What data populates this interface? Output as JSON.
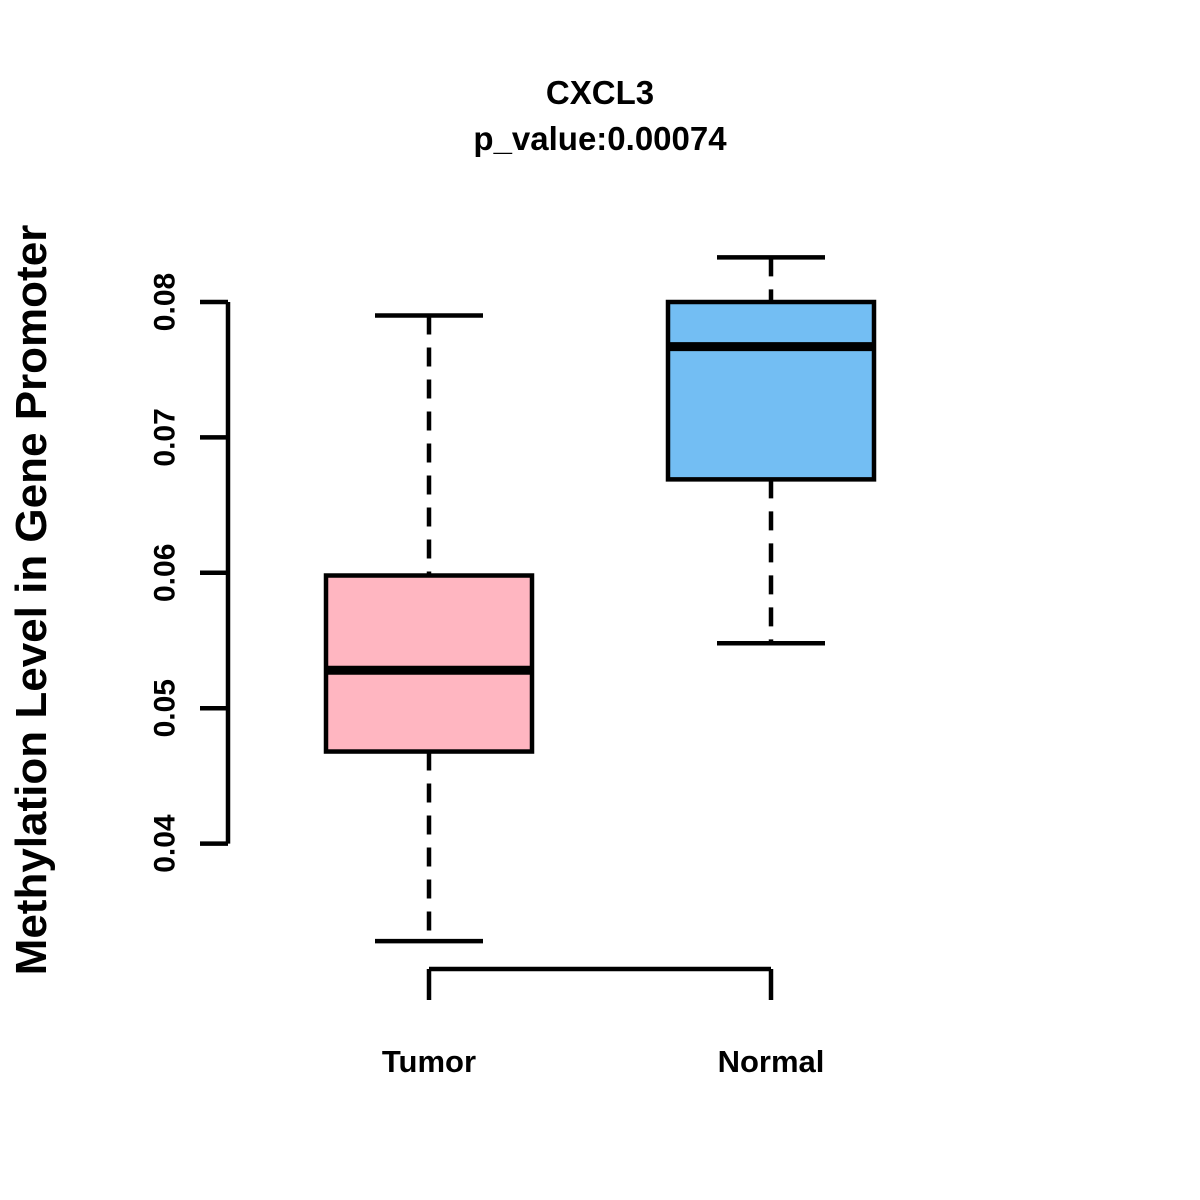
{
  "chart_data": {
    "type": "boxplot",
    "title": "CXCL3",
    "subtitle": "p_value:0.00074",
    "ylabel": "Methylation Level in Gene Promoter",
    "xlabel": "",
    "categories": [
      "Tumor",
      "Normal"
    ],
    "ytick_labels": [
      "0.04",
      "0.05",
      "0.06",
      "0.07",
      "0.08"
    ],
    "axis_range": [
      0.04,
      0.08
    ],
    "grid": false,
    "legend": "none",
    "groups": [
      {
        "label": "Tumor",
        "fill_color": "#FFB6C1",
        "whisker_low": 0.0328,
        "q1": 0.0468,
        "median": 0.0528,
        "q3": 0.0598,
        "whisker_high": 0.079
      },
      {
        "label": "Normal",
        "fill_color": "#73BEF3",
        "whisker_low": 0.0548,
        "q1": 0.0669,
        "median": 0.0767,
        "q3": 0.08,
        "whisker_high": 0.0833
      }
    ],
    "colors": {
      "stroke": "#000000",
      "text": "#000000",
      "background": "#FFFFFF"
    }
  }
}
